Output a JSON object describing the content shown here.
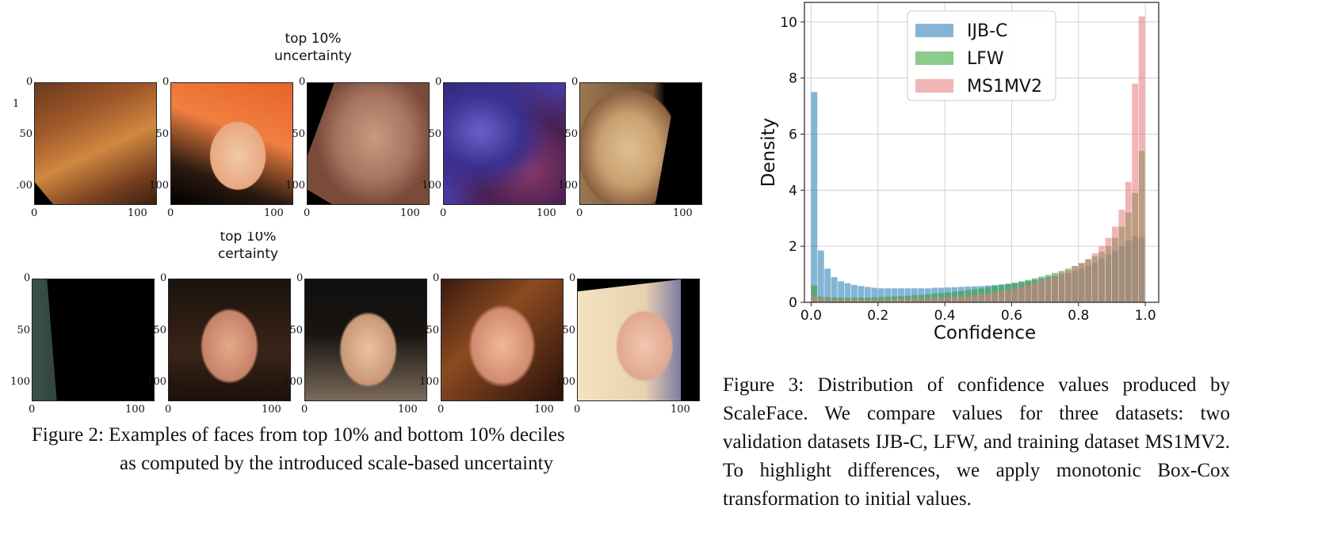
{
  "figure2": {
    "row_top_label_line1": "top 10%",
    "row_top_label_line2": "uncertainty",
    "row_bottom_label_line1": "top 10%",
    "row_bottom_label_line2": "certainty",
    "tick_labels": {
      "y0": "0",
      "y50": "50",
      "y100": "100",
      "x0": "0",
      "x100": "100"
    },
    "first_panel_y_ticks": {
      "y50": "50",
      "y100": ".00"
    },
    "stray_mark": "1",
    "caption_line1": "Figure 2: Examples of faces from top 10% and bottom 10% deciles",
    "caption_line2": "as computed by the introduced scale-based uncertainty"
  },
  "figure3": {
    "caption": "Figure 3: Distribution of confidence values produced by ScaleFace. We compare values for three datasets: two validation datasets IJB-C, LFW, and training dataset MS1MV2. To highlight differences, we apply monotonic Box-Cox transformation to initial values."
  },
  "chart_data": {
    "type": "bar",
    "xlabel": "Confidence",
    "ylabel": "Density",
    "xlim": [
      -0.02,
      1.04
    ],
    "ylim": [
      0,
      10.7
    ],
    "xticks": [
      "0.0",
      "0.2",
      "0.4",
      "0.6",
      "0.8",
      "1.0"
    ],
    "yticks": [
      "0",
      "2",
      "4",
      "6",
      "8",
      "10"
    ],
    "grid": true,
    "legend_position": "top-center",
    "bin_width": 0.02,
    "x": [
      0.01,
      0.03,
      0.05,
      0.07,
      0.09,
      0.11,
      0.13,
      0.15,
      0.17,
      0.19,
      0.21,
      0.23,
      0.25,
      0.27,
      0.29,
      0.31,
      0.33,
      0.35,
      0.37,
      0.39,
      0.41,
      0.43,
      0.45,
      0.47,
      0.49,
      0.51,
      0.53,
      0.55,
      0.57,
      0.59,
      0.61,
      0.63,
      0.65,
      0.67,
      0.69,
      0.71,
      0.73,
      0.75,
      0.77,
      0.79,
      0.81,
      0.83,
      0.85,
      0.87,
      0.89,
      0.91,
      0.93,
      0.95,
      0.97,
      0.99
    ],
    "series": [
      {
        "name": "IJB-C",
        "color": "#1f77b4",
        "values": [
          7.5,
          1.85,
          1.2,
          0.9,
          0.75,
          0.68,
          0.62,
          0.58,
          0.55,
          0.52,
          0.5,
          0.5,
          0.5,
          0.5,
          0.5,
          0.5,
          0.5,
          0.5,
          0.52,
          0.52,
          0.53,
          0.54,
          0.55,
          0.56,
          0.57,
          0.58,
          0.6,
          0.62,
          0.64,
          0.66,
          0.68,
          0.72,
          0.76,
          0.8,
          0.85,
          0.9,
          0.95,
          1.0,
          1.05,
          1.12,
          1.2,
          1.3,
          1.42,
          1.55,
          1.7,
          1.85,
          2.0,
          2.2,
          2.35,
          2.3
        ]
      },
      {
        "name": "LFW",
        "color": "#2ca02c",
        "values": [
          0.6,
          0.2,
          0.18,
          0.17,
          0.16,
          0.16,
          0.16,
          0.17,
          0.17,
          0.18,
          0.19,
          0.2,
          0.21,
          0.22,
          0.23,
          0.25,
          0.27,
          0.29,
          0.31,
          0.33,
          0.35,
          0.38,
          0.41,
          0.44,
          0.47,
          0.5,
          0.54,
          0.58,
          0.62,
          0.66,
          0.7,
          0.75,
          0.8,
          0.86,
          0.92,
          0.98,
          1.05,
          1.12,
          1.2,
          1.3,
          1.4,
          1.52,
          1.65,
          1.8,
          2.0,
          2.3,
          2.7,
          3.2,
          3.9,
          5.4
        ]
      },
      {
        "name": "MS1MV2",
        "color": "#e8767c",
        "values": [
          0.25,
          0.15,
          0.12,
          0.1,
          0.1,
          0.1,
          0.1,
          0.1,
          0.1,
          0.1,
          0.1,
          0.11,
          0.11,
          0.12,
          0.12,
          0.13,
          0.14,
          0.15,
          0.16,
          0.17,
          0.18,
          0.2,
          0.22,
          0.24,
          0.26,
          0.29,
          0.32,
          0.36,
          0.4,
          0.45,
          0.5,
          0.56,
          0.62,
          0.7,
          0.78,
          0.86,
          0.95,
          1.05,
          1.15,
          1.27,
          1.4,
          1.55,
          1.75,
          2.0,
          2.3,
          2.7,
          3.3,
          4.3,
          7.8,
          10.2
        ]
      }
    ]
  }
}
